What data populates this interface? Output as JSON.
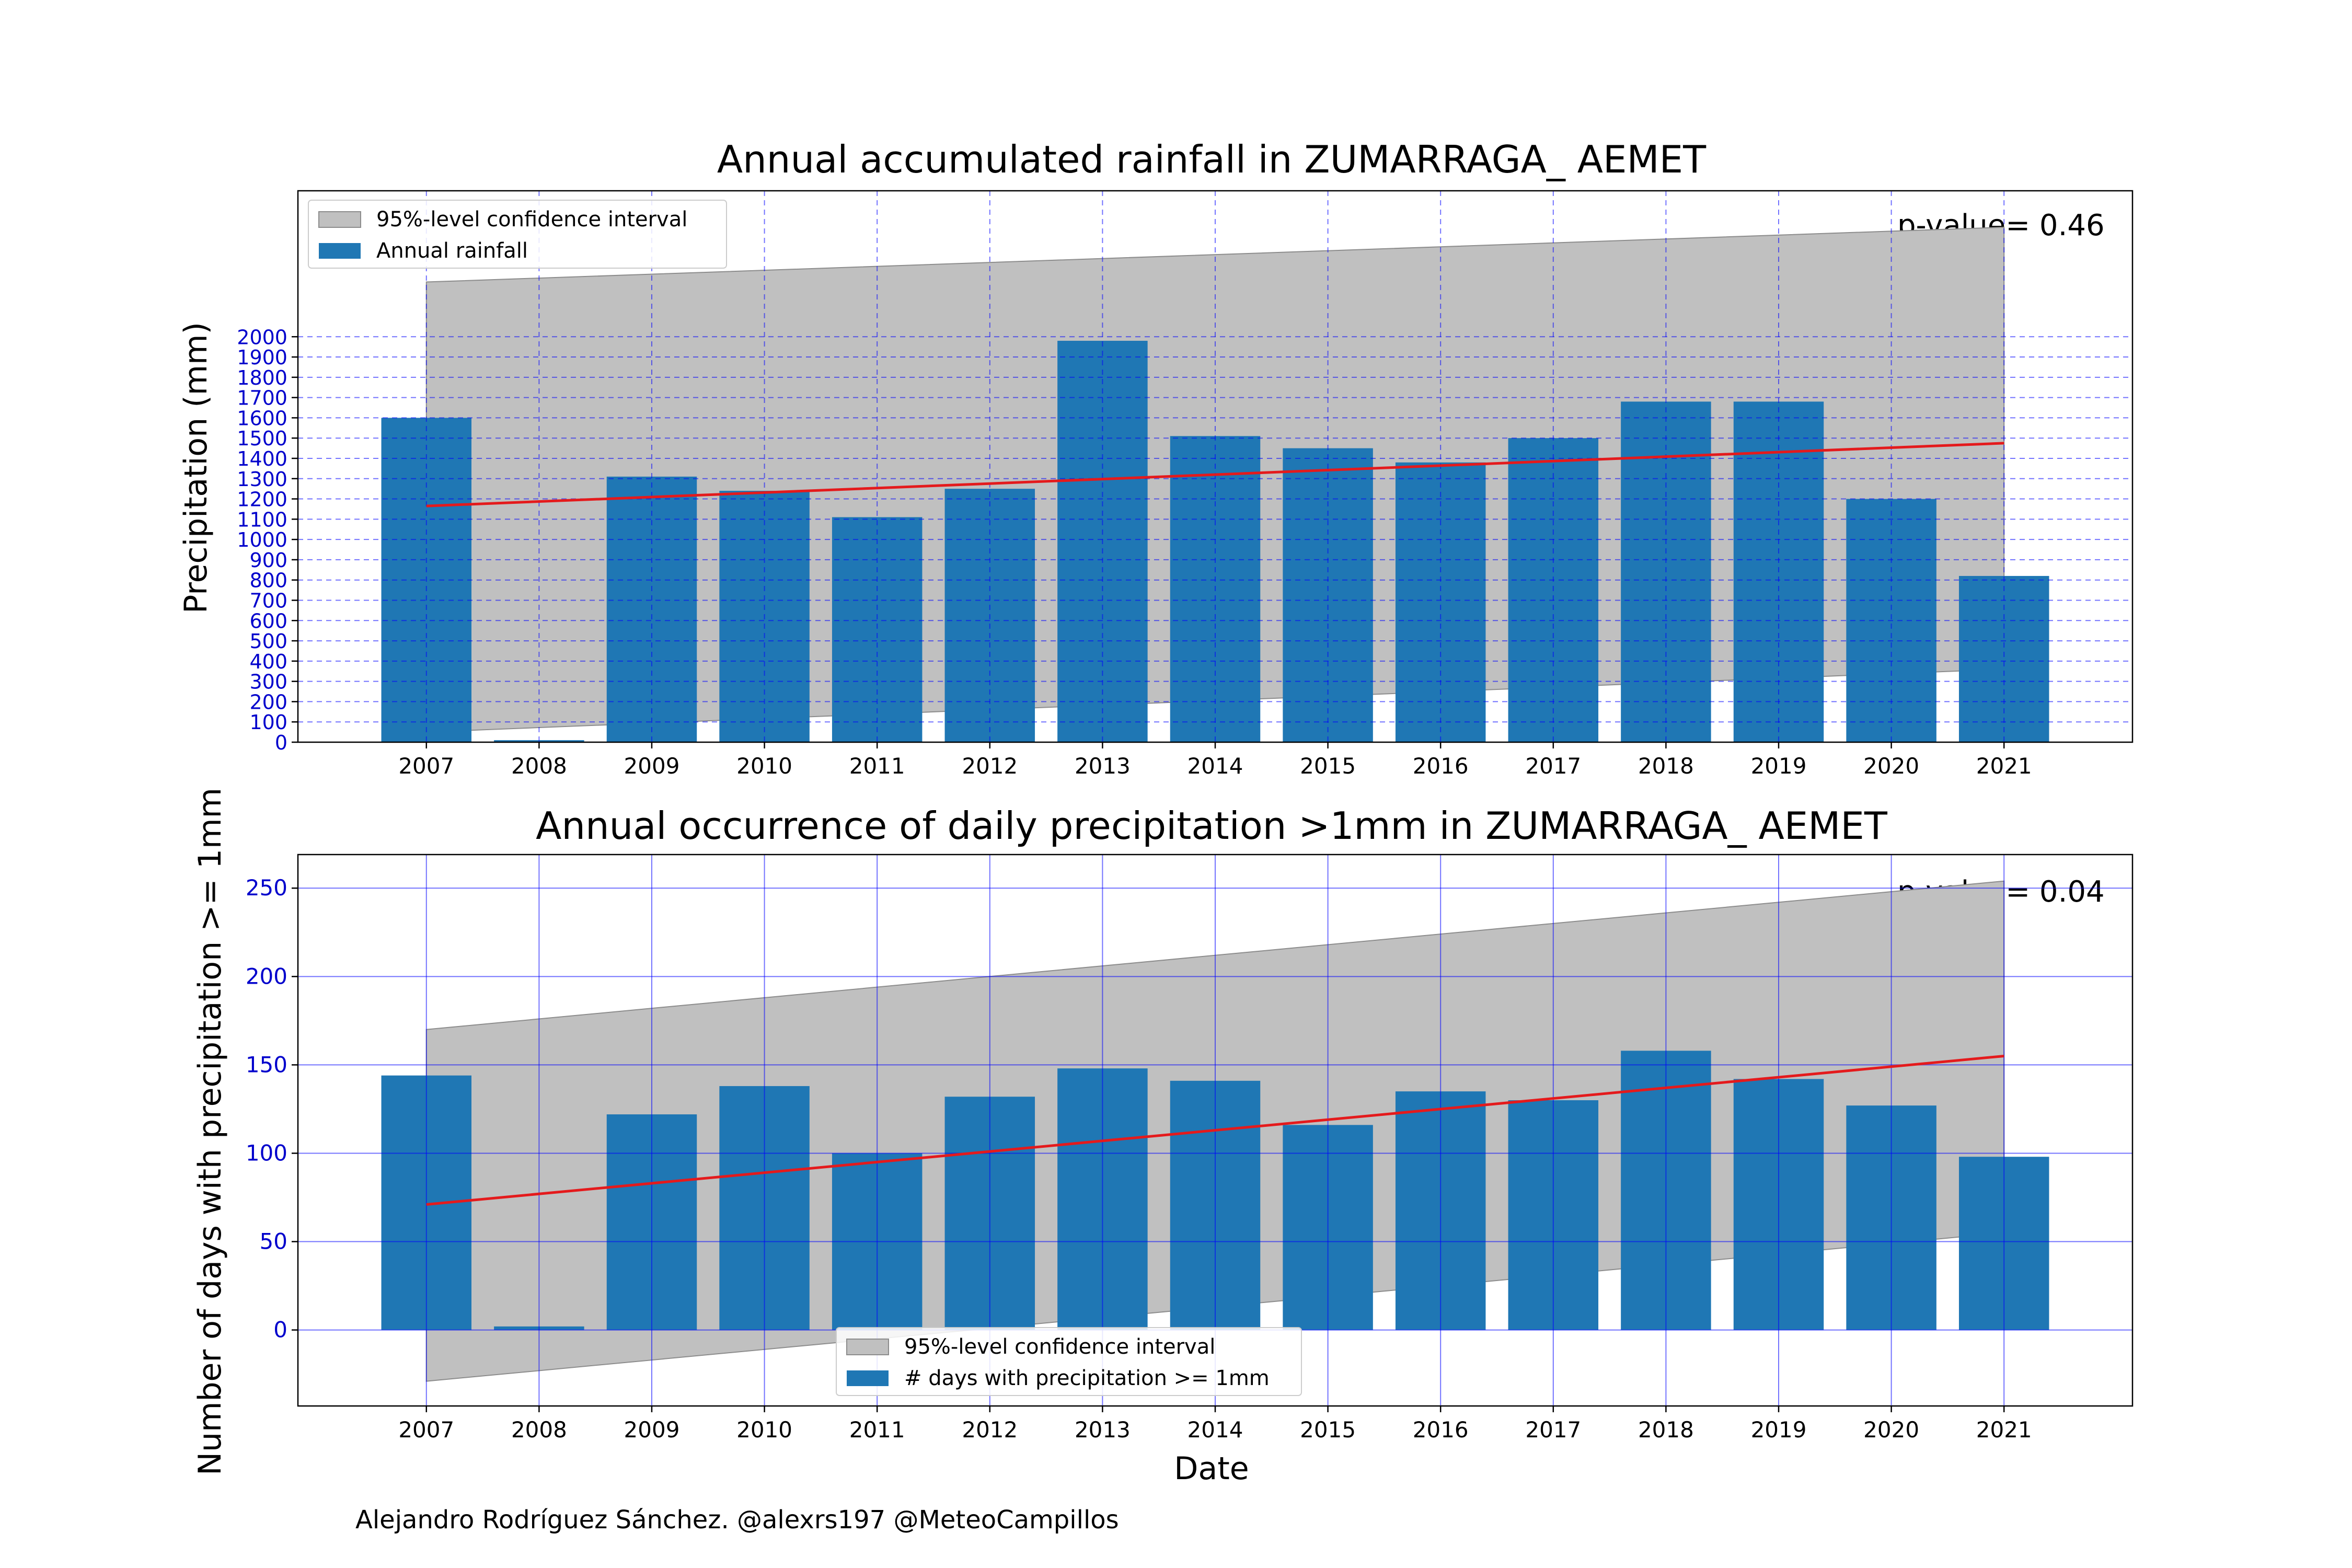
{
  "credit": "Alejandro Rodríguez Sánchez. @alexrs197 @MeteoCampillos",
  "colors": {
    "bar": "#1f77b4",
    "trend": "#e41a1c",
    "confidence": "#c0c0c0",
    "grid": "#0000ff",
    "tick_label": "#0000cc"
  },
  "chart_data": [
    {
      "type": "bar",
      "title": "Annual accumulated rainfall in ZUMARRAGA_ AEMET",
      "xlabel": "",
      "ylabel": "Precipitation (mm)",
      "categories": [
        "2007",
        "2008",
        "2009",
        "2010",
        "2011",
        "2012",
        "2013",
        "2014",
        "2015",
        "2016",
        "2017",
        "2018",
        "2019",
        "2020",
        "2021"
      ],
      "series": [
        {
          "name": "Annual rainfall",
          "values": [
            1600,
            10,
            1310,
            1240,
            1110,
            1250,
            1980,
            1510,
            1450,
            1380,
            1500,
            1680,
            1680,
            1200,
            820
          ]
        }
      ],
      "trend": {
        "x": [
          "2007",
          "2021"
        ],
        "y": [
          1165,
          1475
        ]
      },
      "confidence_interval": {
        "name": "95%-level confidence interval",
        "x": [
          "2007",
          "2021"
        ],
        "upper": [
          2270,
          2540
        ],
        "lower": [
          50,
          360
        ]
      },
      "annotation": "p-value= 0.46",
      "yticks": [
        0,
        100,
        200,
        300,
        400,
        500,
        600,
        700,
        800,
        900,
        1000,
        1100,
        1200,
        1300,
        1400,
        1500,
        1600,
        1700,
        1800,
        1900,
        2000
      ],
      "ylim": [
        0,
        2720
      ],
      "grid": true,
      "legend_position": "top-left"
    },
    {
      "type": "bar",
      "title": "Annual occurrence of daily precipitation >1mm in ZUMARRAGA_ AEMET",
      "xlabel": "Date",
      "ylabel": "Number of days with precipitation >= 1mm",
      "categories": [
        "2007",
        "2008",
        "2009",
        "2010",
        "2011",
        "2012",
        "2013",
        "2014",
        "2015",
        "2016",
        "2017",
        "2018",
        "2019",
        "2020",
        "2021"
      ],
      "series": [
        {
          "name": "# days with precipitation >= 1mm",
          "values": [
            144,
            2,
            122,
            138,
            100,
            132,
            148,
            141,
            116,
            135,
            130,
            158,
            142,
            127,
            98
          ]
        }
      ],
      "trend": {
        "x": [
          "2007",
          "2021"
        ],
        "y": [
          71,
          155
        ]
      },
      "confidence_interval": {
        "name": "95%-level confidence interval",
        "x": [
          "2007",
          "2021"
        ],
        "upper": [
          170,
          254
        ],
        "lower": [
          -29,
          55
        ]
      },
      "annotation": "p-value= 0.04",
      "yticks": [
        0,
        50,
        100,
        150,
        200,
        250
      ],
      "ylim": [
        -43,
        269
      ],
      "grid": true,
      "legend_position": "bottom-center"
    }
  ]
}
